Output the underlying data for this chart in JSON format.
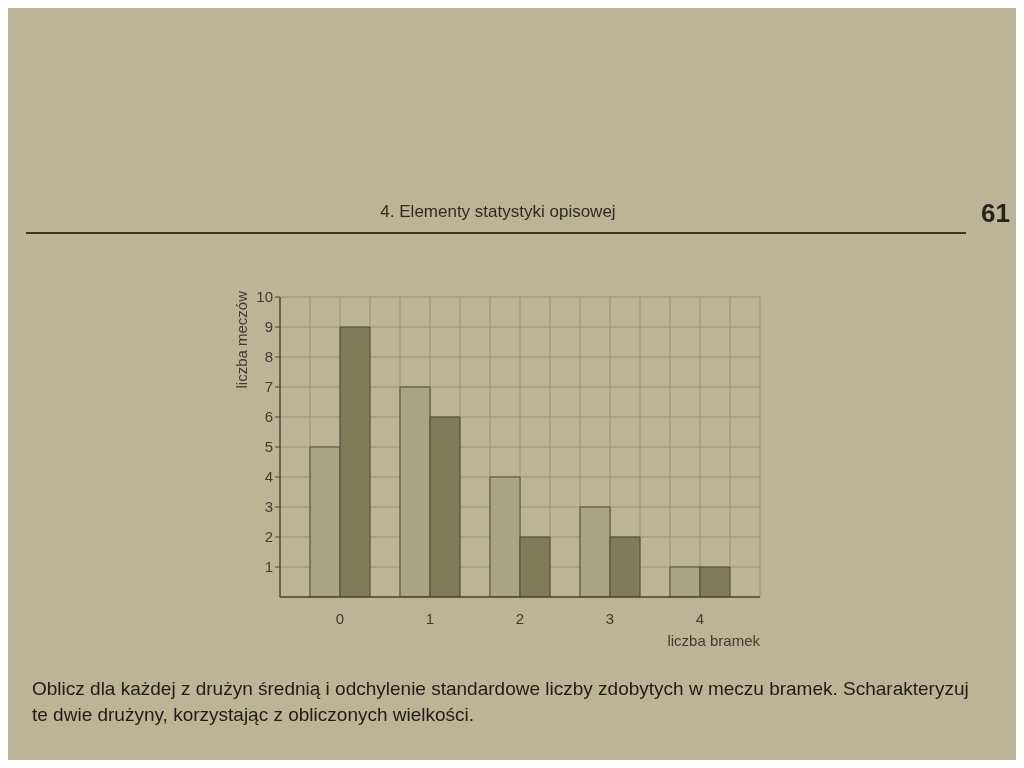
{
  "chart_data": {
    "type": "bar",
    "categories": [
      "0",
      "1",
      "2",
      "3",
      "4"
    ],
    "series": [
      {
        "color": "#a7a585",
        "values": [
          5,
          7,
          4,
          3,
          1
        ]
      },
      {
        "color": "#7e7c5a",
        "values": [
          9,
          6,
          2,
          2,
          1
        ]
      }
    ],
    "xlabel": "liczba bramek",
    "ylabel": "liczba meczów",
    "ylim": [
      0,
      10
    ],
    "yticks": [
      1,
      2,
      3,
      4,
      5,
      6,
      7,
      8,
      9,
      10
    ],
    "grid": true,
    "annotations": [
      "4. Elementy statystyki opisowej",
      "61",
      "Oblicz dla każdej z drużyn średnią i odchylenie standardowe liczby zdobytych w meczu bramek. Scharakteryzuj te dwie drużyny, korzystając z obliczonych wielkości."
    ]
  }
}
